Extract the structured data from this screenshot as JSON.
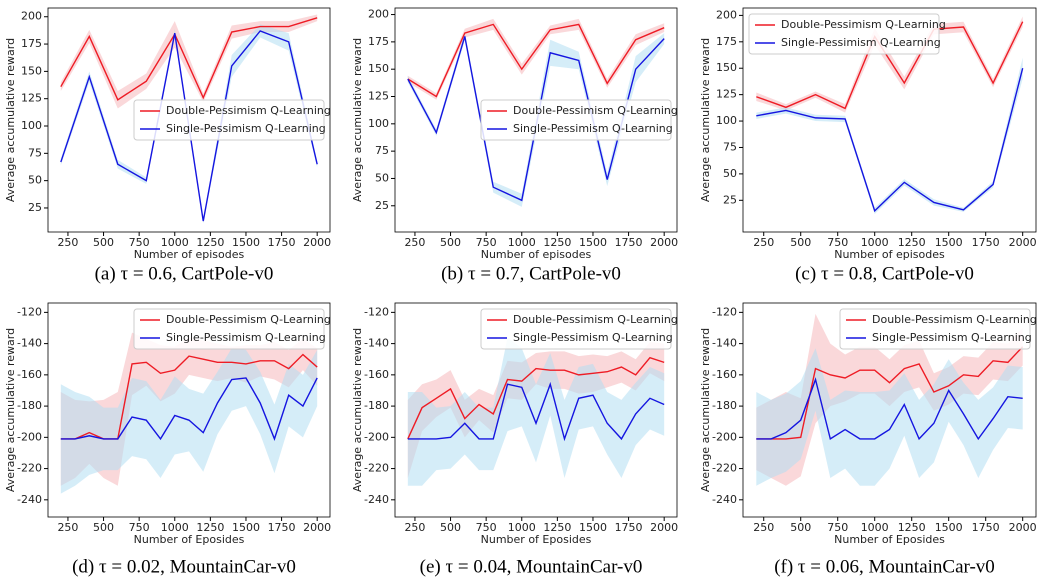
{
  "chart_data": [
    {
      "type": "line",
      "caption": "(a) τ = 0.6, CartPole-v0",
      "xlabel": "Number of episodes",
      "ylabel": "Average accumulative reward",
      "legend": "center right",
      "x": [
        200,
        400,
        600,
        800,
        1000,
        1200,
        1400,
        1600,
        1800,
        2000
      ],
      "xlim": [
        110,
        2090
      ],
      "xticks": [
        250,
        500,
        750,
        1000,
        1250,
        1500,
        1750,
        2000
      ],
      "ylim": [
        3,
        208
      ],
      "yticks": [
        25,
        50,
        75,
        100,
        125,
        150,
        175,
        200
      ],
      "series": [
        {
          "name": "Double-Pessimism Q-Learning",
          "color": "#ee1c25",
          "band_color": "#f6b8bb",
          "values": [
            136,
            182,
            124,
            141,
            184,
            126,
            186,
            191,
            191,
            199
          ],
          "error": [
            4,
            6,
            8,
            7,
            12,
            4,
            6,
            5,
            5,
            3
          ]
        },
        {
          "name": "Single-Pessimism Q-Learning",
          "color": "#1515e0",
          "band_color": "#b3def2",
          "values": [
            67,
            145,
            65,
            50,
            185,
            13,
            155,
            187,
            177,
            65
          ],
          "error": [
            3,
            5,
            4,
            3,
            4,
            2,
            10,
            6,
            8,
            3
          ]
        }
      ]
    },
    {
      "type": "line",
      "caption": "(b) τ = 0.7, CartPole-v0",
      "xlabel": "Number of episodes",
      "ylabel": "Average accumulative reward",
      "legend": "center right",
      "x": [
        200,
        400,
        600,
        800,
        1000,
        1200,
        1400,
        1600,
        1800,
        2000
      ],
      "xlim": [
        110,
        2090
      ],
      "xticks": [
        250,
        500,
        750,
        1000,
        1250,
        1500,
        1750,
        2000
      ],
      "ylim": [
        1,
        206
      ],
      "yticks": [
        25,
        50,
        75,
        100,
        125,
        150,
        175,
        200
      ],
      "series": [
        {
          "name": "Double-Pessimism Q-Learning",
          "color": "#ee1c25",
          "band_color": "#f6b8bb",
          "values": [
            141,
            125,
            183,
            191,
            150,
            186,
            191,
            137,
            177,
            188
          ],
          "error": [
            3,
            3,
            4,
            5,
            5,
            4,
            5,
            4,
            5,
            4
          ]
        },
        {
          "name": "Single-Pessimism Q-Learning",
          "color": "#1515e0",
          "band_color": "#b3def2",
          "values": [
            141,
            92,
            180,
            42,
            30,
            165,
            158,
            49,
            150,
            178
          ],
          "error": [
            3,
            3,
            4,
            5,
            6,
            12,
            8,
            6,
            12,
            5
          ]
        }
      ]
    },
    {
      "type": "line",
      "caption": "(c) τ = 0.8, CartPole-v0",
      "xlabel": "Number of episodes",
      "ylabel": "Average accumulative reward",
      "legend": "upper left",
      "x": [
        200,
        400,
        600,
        800,
        1000,
        1200,
        1400,
        1600,
        1800,
        2000
      ],
      "xlim": [
        110,
        2090
      ],
      "xticks": [
        250,
        500,
        750,
        1000,
        1250,
        1500,
        1750,
        2000
      ],
      "ylim": [
        -5,
        207
      ],
      "yticks": [
        25,
        50,
        75,
        100,
        125,
        150,
        175,
        200
      ],
      "series": [
        {
          "name": "Double-Pessimism Q-Learning",
          "color": "#ee1c25",
          "band_color": "#f6b8bb",
          "values": [
            123,
            113,
            125,
            112,
            180,
            136,
            187,
            189,
            136,
            194
          ],
          "error": [
            4,
            3,
            3,
            4,
            8,
            6,
            5,
            5,
            4,
            5
          ]
        },
        {
          "name": "Single-Pessimism Q-Learning",
          "color": "#1515e0",
          "band_color": "#b3def2",
          "values": [
            105,
            110,
            103,
            102,
            15,
            42,
            23,
            16,
            40,
            150
          ],
          "error": [
            3,
            3,
            3,
            3,
            3,
            3,
            3,
            2,
            3,
            10
          ]
        }
      ]
    },
    {
      "type": "line",
      "caption": "(d) τ = 0.02, MountainCar-v0",
      "xlabel": "Number of Eposides",
      "ylabel": "Average accumulative reward",
      "legend": "upper right",
      "x": [
        200,
        300,
        400,
        500,
        600,
        700,
        800,
        900,
        1000,
        1100,
        1200,
        1300,
        1400,
        1500,
        1600,
        1700,
        1800,
        1900,
        2000
      ],
      "xlim": [
        110,
        2090
      ],
      "xticks": [
        250,
        500,
        750,
        1000,
        1250,
        1500,
        1750,
        2000
      ],
      "ylim": [
        -251,
        -114
      ],
      "yticks": [
        -240,
        -220,
        -200,
        -180,
        -160,
        -140,
        -120
      ],
      "series": [
        {
          "name": "Double-Pessimism Q-Learning",
          "color": "#ee1c25",
          "band_color": "#f6b8bb",
          "values": [
            -201,
            -201,
            -197,
            -201,
            -201,
            -153,
            -152,
            -159,
            -157,
            -148,
            -150,
            -152,
            -152,
            -153,
            -151,
            -151,
            -156,
            -147,
            -155
          ],
          "error": [
            30,
            25,
            20,
            25,
            30,
            20,
            15,
            18,
            15,
            12,
            12,
            12,
            10,
            12,
            10,
            12,
            12,
            10,
            12
          ]
        },
        {
          "name": "Single-Pessimism Q-Learning",
          "color": "#1515e0",
          "band_color": "#b3def2",
          "values": [
            -201,
            -201,
            -199,
            -201,
            -201,
            -187,
            -189,
            -201,
            -186,
            -189,
            -197,
            -178,
            -163,
            -162,
            -178,
            -201,
            -173,
            -180,
            -162
          ],
          "error": [
            35,
            30,
            25,
            20,
            20,
            25,
            25,
            25,
            25,
            20,
            25,
            20,
            20,
            18,
            20,
            22,
            20,
            20,
            18
          ]
        }
      ]
    },
    {
      "type": "line",
      "caption": "(e) τ = 0.04, MountainCar-v0",
      "xlabel": "Number of Eposides",
      "ylabel": "Average accumulative reward",
      "legend": "upper right",
      "x": [
        200,
        300,
        400,
        500,
        600,
        700,
        800,
        900,
        1000,
        1100,
        1200,
        1300,
        1400,
        1500,
        1600,
        1700,
        1800,
        1900,
        2000
      ],
      "xlim": [
        110,
        2090
      ],
      "xticks": [
        250,
        500,
        750,
        1000,
        1250,
        1500,
        1750,
        2000
      ],
      "ylim": [
        -251,
        -114
      ],
      "yticks": [
        -240,
        -220,
        -200,
        -180,
        -160,
        -140,
        -120
      ],
      "series": [
        {
          "name": "Double-Pessimism Q-Learning",
          "color": "#ee1c25",
          "band_color": "#f6b8bb",
          "values": [
            -201,
            -181,
            -175,
            -169,
            -188,
            -179,
            -185,
            -163,
            -164,
            -156,
            -157,
            -157,
            -160,
            -159,
            -158,
            -155,
            -160,
            -149,
            -152
          ],
          "error": [
            25,
            15,
            12,
            12,
            12,
            10,
            12,
            12,
            12,
            10,
            12,
            12,
            12,
            12,
            10,
            10,
            10,
            10,
            12
          ]
        },
        {
          "name": "Single-Pessimism Q-Learning",
          "color": "#1515e0",
          "band_color": "#b3def2",
          "values": [
            -201,
            -201,
            -201,
            -200,
            -191,
            -201,
            -201,
            -166,
            -168,
            -191,
            -166,
            -201,
            -175,
            -173,
            -191,
            -201,
            -185,
            -175,
            -179
          ],
          "error": [
            30,
            30,
            20,
            20,
            20,
            20,
            20,
            30,
            25,
            25,
            20,
            25,
            20,
            20,
            20,
            25,
            20,
            20,
            20
          ]
        }
      ]
    },
    {
      "type": "line",
      "caption": "(f) τ = 0.06, MountainCar-v0",
      "xlabel": "Number of Eposides",
      "ylabel": "Average accumulative reward",
      "legend": "upper right",
      "x": [
        200,
        300,
        400,
        500,
        600,
        700,
        800,
        900,
        1000,
        1100,
        1200,
        1300,
        1400,
        1500,
        1600,
        1700,
        1800,
        1900,
        2000
      ],
      "xlim": [
        110,
        2090
      ],
      "xticks": [
        250,
        500,
        750,
        1000,
        1250,
        1500,
        1750,
        2000
      ],
      "ylim": [
        -251,
        -114
      ],
      "yticks": [
        -240,
        -220,
        -200,
        -180,
        -160,
        -140,
        -120
      ],
      "series": [
        {
          "name": "Double-Pessimism Q-Learning",
          "color": "#ee1c25",
          "band_color": "#f6b8bb",
          "values": [
            -201,
            -201,
            -201,
            -200,
            -156,
            -160,
            -162,
            -157,
            -157,
            -165,
            -156,
            -153,
            -171,
            -167,
            -160,
            -161,
            -151,
            -152,
            -142
          ],
          "error": [
            20,
            25,
            30,
            25,
            35,
            20,
            15,
            15,
            15,
            15,
            15,
            15,
            12,
            12,
            12,
            12,
            12,
            12,
            12
          ]
        },
        {
          "name": "Single-Pessimism Q-Learning",
          "color": "#1515e0",
          "band_color": "#b3def2",
          "values": [
            -201,
            -201,
            -197,
            -189,
            -163,
            -201,
            -195,
            -201,
            -201,
            -195,
            -179,
            -201,
            -191,
            -170,
            -185,
            -201,
            -188,
            -174,
            -175
          ],
          "error": [
            30,
            25,
            25,
            25,
            20,
            25,
            25,
            30,
            30,
            25,
            20,
            25,
            25,
            20,
            20,
            25,
            20,
            20,
            20
          ]
        }
      ]
    }
  ]
}
